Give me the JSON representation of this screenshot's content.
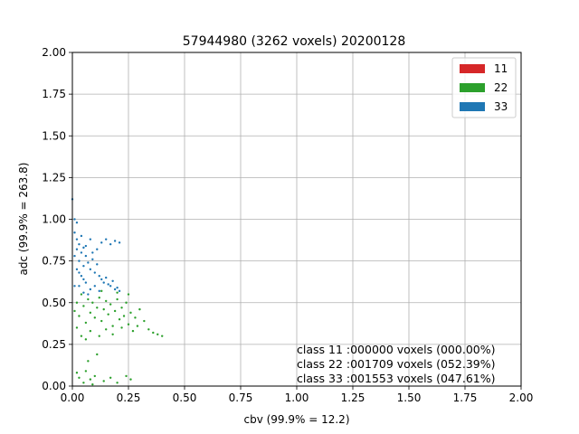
{
  "chart_data": {
    "type": "scatter",
    "title": "57944980 (3262 voxels) 20200128",
    "xlabel": "cbv (99.9% = 12.2)",
    "ylabel": "adc (99.9% = 263.8)",
    "xlim": [
      0,
      2
    ],
    "ylim": [
      0,
      2
    ],
    "xticks": [
      "0.00",
      "0.25",
      "0.50",
      "0.75",
      "1.00",
      "1.25",
      "1.50",
      "1.75",
      "2.00"
    ],
    "yticks": [
      "0.00",
      "0.25",
      "0.50",
      "0.75",
      "1.00",
      "1.25",
      "1.50",
      "1.75",
      "2.00"
    ],
    "grid": true,
    "legend": {
      "placement": "top-right",
      "entries": [
        {
          "label": "11",
          "color": "#d62728"
        },
        {
          "label": "22",
          "color": "#2ca02c"
        },
        {
          "label": "33",
          "color": "#1f77b4"
        }
      ]
    },
    "annotations": [
      "class 11 :000000 voxels (000.00%)",
      "class 22 :001709 voxels (052.39%)",
      "class 33 :001553 voxels (047.61%)"
    ],
    "series": [
      {
        "name": "22",
        "color": "#2ca02c",
        "points": [
          [
            0.01,
            0.45
          ],
          [
            0.02,
            0.5
          ],
          [
            0.03,
            0.42
          ],
          [
            0.04,
            0.55
          ],
          [
            0.05,
            0.48
          ],
          [
            0.06,
            0.38
          ],
          [
            0.07,
            0.52
          ],
          [
            0.08,
            0.44
          ],
          [
            0.09,
            0.5
          ],
          [
            0.1,
            0.41
          ],
          [
            0.11,
            0.47
          ],
          [
            0.12,
            0.53
          ],
          [
            0.13,
            0.39
          ],
          [
            0.14,
            0.46
          ],
          [
            0.15,
            0.51
          ],
          [
            0.16,
            0.43
          ],
          [
            0.17,
            0.49
          ],
          [
            0.18,
            0.36
          ],
          [
            0.19,
            0.45
          ],
          [
            0.2,
            0.52
          ],
          [
            0.21,
            0.4
          ],
          [
            0.22,
            0.47
          ],
          [
            0.23,
            0.42
          ],
          [
            0.24,
            0.5
          ],
          [
            0.25,
            0.37
          ],
          [
            0.26,
            0.44
          ],
          [
            0.27,
            0.33
          ],
          [
            0.28,
            0.41
          ],
          [
            0.29,
            0.36
          ],
          [
            0.3,
            0.46
          ],
          [
            0.32,
            0.39
          ],
          [
            0.34,
            0.34
          ],
          [
            0.36,
            0.32
          ],
          [
            0.38,
            0.31
          ],
          [
            0.4,
            0.3
          ],
          [
            0.02,
            0.35
          ],
          [
            0.04,
            0.3
          ],
          [
            0.06,
            0.28
          ],
          [
            0.08,
            0.33
          ],
          [
            0.12,
            0.3
          ],
          [
            0.15,
            0.34
          ],
          [
            0.18,
            0.31
          ],
          [
            0.22,
            0.35
          ],
          [
            0.02,
            0.08
          ],
          [
            0.03,
            0.05
          ],
          [
            0.05,
            0.02
          ],
          [
            0.06,
            0.09
          ],
          [
            0.08,
            0.04
          ],
          [
            0.1,
            0.06
          ],
          [
            0.14,
            0.03
          ],
          [
            0.17,
            0.05
          ],
          [
            0.2,
            0.02
          ],
          [
            0.24,
            0.06
          ],
          [
            0.26,
            0.04
          ],
          [
            0.09,
            0.01
          ],
          [
            0.11,
            0.19
          ],
          [
            0.07,
            0.15
          ],
          [
            0.13,
            0.57
          ],
          [
            0.2,
            0.56
          ],
          [
            0.25,
            0.55
          ]
        ]
      },
      {
        "name": "33",
        "color": "#1f77b4",
        "points": [
          [
            0.0,
            1.12
          ],
          [
            0.01,
            1.0
          ],
          [
            0.02,
            0.98
          ],
          [
            0.01,
            0.92
          ],
          [
            0.02,
            0.88
          ],
          [
            0.03,
            0.85
          ],
          [
            0.04,
            0.8
          ],
          [
            0.05,
            0.83
          ],
          [
            0.06,
            0.78
          ],
          [
            0.03,
            0.75
          ],
          [
            0.05,
            0.72
          ],
          [
            0.07,
            0.74
          ],
          [
            0.08,
            0.7
          ],
          [
            0.09,
            0.76
          ],
          [
            0.1,
            0.68
          ],
          [
            0.11,
            0.73
          ],
          [
            0.12,
            0.66
          ],
          [
            0.13,
            0.64
          ],
          [
            0.14,
            0.62
          ],
          [
            0.15,
            0.65
          ],
          [
            0.16,
            0.61
          ],
          [
            0.17,
            0.6
          ],
          [
            0.18,
            0.63
          ],
          [
            0.19,
            0.58
          ],
          [
            0.2,
            0.59
          ],
          [
            0.21,
            0.57
          ],
          [
            0.02,
            0.7
          ],
          [
            0.04,
            0.66
          ],
          [
            0.06,
            0.62
          ],
          [
            0.08,
            0.58
          ],
          [
            0.1,
            0.6
          ],
          [
            0.12,
            0.57
          ],
          [
            0.03,
            0.6
          ],
          [
            0.05,
            0.56
          ],
          [
            0.07,
            0.55
          ],
          [
            0.09,
            0.8
          ],
          [
            0.11,
            0.82
          ],
          [
            0.13,
            0.86
          ],
          [
            0.15,
            0.88
          ],
          [
            0.17,
            0.85
          ],
          [
            0.21,
            0.86
          ],
          [
            0.19,
            0.87
          ],
          [
            0.01,
            0.78
          ],
          [
            0.02,
            0.82
          ],
          [
            0.04,
            0.9
          ],
          [
            0.06,
            0.84
          ],
          [
            0.08,
            0.88
          ],
          [
            0.01,
            0.6
          ],
          [
            0.03,
            0.68
          ],
          [
            0.05,
            0.64
          ]
        ]
      }
    ]
  }
}
